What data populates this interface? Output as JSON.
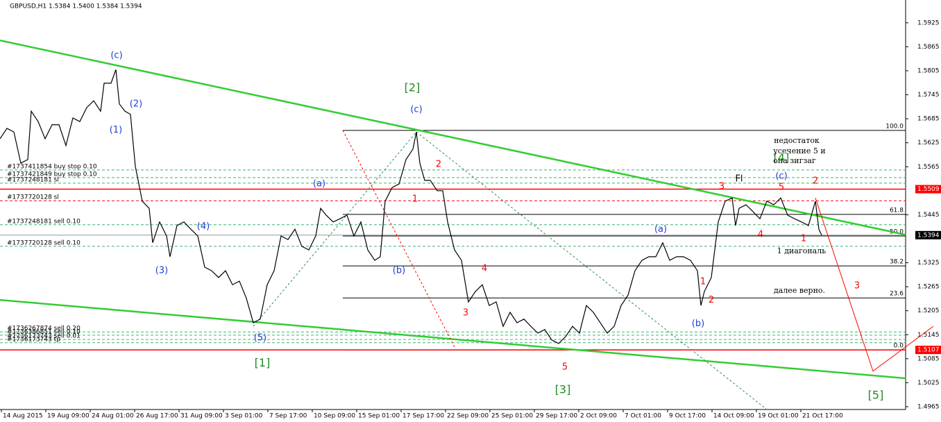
{
  "chart_data": {
    "type": "line",
    "title": "GBPUSD,H1  1.5384 1.5400 1.5384 1.5394",
    "xlim": [
      0,
      1305
    ],
    "ylim": [
      1.4958,
      1.5982
    ],
    "xticks": [
      {
        "value": 0,
        "label": "14 Aug 2015"
      },
      {
        "value": 64,
        "label": "19 Aug 09:00"
      },
      {
        "value": 128,
        "label": "24 Aug 01:00"
      },
      {
        "value": 192,
        "label": "26 Aug 17:00"
      },
      {
        "value": 256,
        "label": "31 Aug 09:00"
      },
      {
        "value": 320,
        "label": "3 Sep 01:00"
      },
      {
        "value": 384,
        "label": "7 Sep 17:00"
      },
      {
        "value": 448,
        "label": "10 Sep 09:00"
      },
      {
        "value": 512,
        "label": "15 Sep 01:00"
      },
      {
        "value": 576,
        "label": "17 Sep 17:00"
      },
      {
        "value": 640,
        "label": "22 Sep 09:00"
      },
      {
        "value": 704,
        "label": "25 Sep 01:00"
      },
      {
        "value": 768,
        "label": "29 Sep 17:00"
      },
      {
        "value": 832,
        "label": "2 Oct 09:00"
      },
      {
        "value": 896,
        "label": "7 Oct 01:00"
      },
      {
        "value": 960,
        "label": "9 Oct 17:00"
      },
      {
        "value": 1024,
        "label": "14 Oct 09:00"
      },
      {
        "value": 1088,
        "label": "19 Oct 01:00"
      },
      {
        "value": 1152,
        "label": "21 Oct 17:00"
      }
    ],
    "yticks": [
      1.5925,
      1.5865,
      1.5805,
      1.5745,
      1.5685,
      1.5625,
      1.5565,
      1.5445,
      1.5325,
      1.5265,
      1.5205,
      1.5145,
      1.5085,
      1.5025,
      1.4965
    ],
    "x": [
      0,
      10,
      20,
      30,
      40,
      45,
      55,
      65,
      75,
      85,
      95,
      105,
      115,
      125,
      135,
      145,
      150,
      160,
      167,
      172,
      180,
      188,
      195,
      205,
      215,
      220,
      230,
      240,
      245,
      255,
      265,
      275,
      285,
      295,
      305,
      315,
      325,
      335,
      345,
      355,
      365,
      375,
      385,
      395,
      405,
      415,
      425,
      435,
      445,
      455,
      462,
      470,
      480,
      490,
      500,
      510,
      520,
      530,
      540,
      548,
      555,
      565,
      575,
      585,
      595,
      600,
      605,
      612,
      620,
      630,
      638,
      645,
      655,
      665,
      675,
      685,
      695,
      705,
      715,
      725,
      735,
      745,
      755,
      765,
      775,
      785,
      795,
      805,
      815,
      825,
      835,
      845,
      855,
      865,
      875,
      885,
      895,
      905,
      915,
      925,
      935,
      945,
      955,
      965,
      975,
      985,
      995,
      1005,
      1010,
      1015,
      1025,
      1035,
      1045,
      1055,
      1060,
      1065,
      1075,
      1085,
      1095,
      1105,
      1115,
      1125,
      1135,
      1145,
      1155,
      1165,
      1175,
      1180,
      1184
    ],
    "series": [
      {
        "color": "#000000",
        "values": [
          1.5635,
          1.5661,
          1.5652,
          1.5574,
          1.5583,
          1.5704,
          1.5678,
          1.5635,
          1.567,
          1.567,
          1.5618,
          1.5687,
          1.5678,
          1.5713,
          1.573,
          1.5704,
          1.5774,
          1.5774,
          1.5808,
          1.5722,
          1.5704,
          1.5696,
          1.5566,
          1.5479,
          1.5461,
          1.5375,
          1.5427,
          1.5392,
          1.534,
          1.5418,
          1.5427,
          1.5409,
          1.5392,
          1.5314,
          1.5305,
          1.5288,
          1.5305,
          1.527,
          1.5279,
          1.5236,
          1.5175,
          1.5184,
          1.527,
          1.5305,
          1.5392,
          1.5383,
          1.5409,
          1.5366,
          1.5357,
          1.5392,
          1.5461,
          1.5444,
          1.5427,
          1.5435,
          1.5444,
          1.5392,
          1.5427,
          1.5357,
          1.5331,
          1.534,
          1.5479,
          1.5513,
          1.5522,
          1.5583,
          1.5609,
          1.5652,
          1.5574,
          1.5531,
          1.5531,
          1.5505,
          1.5505,
          1.5427,
          1.5357,
          1.5331,
          1.5227,
          1.5253,
          1.527,
          1.5218,
          1.5227,
          1.5166,
          1.5201,
          1.5175,
          1.5184,
          1.5166,
          1.5149,
          1.5158,
          1.5132,
          1.5123,
          1.514,
          1.5166,
          1.5149,
          1.5218,
          1.5201,
          1.5175,
          1.5149,
          1.5166,
          1.5218,
          1.5244,
          1.5305,
          1.5331,
          1.534,
          1.534,
          1.5375,
          1.5331,
          1.534,
          1.534,
          1.5331,
          1.5305,
          1.5218,
          1.5253,
          1.5288,
          1.5427,
          1.5479,
          1.5487,
          1.5418,
          1.5461,
          1.547,
          1.5453,
          1.5435,
          1.5479,
          1.547,
          1.5487,
          1.5444,
          1.5435,
          1.5427,
          1.5418,
          1.5479,
          1.5409,
          1.5394
        ]
      }
    ],
    "price_marks": [
      {
        "value": 1.5509,
        "color": "#ff0000"
      },
      {
        "value": 1.5107,
        "color": "#ff0000"
      },
      {
        "value": 1.5394,
        "color": "#000000"
      }
    ],
    "orders": [
      {
        "label": "#1737411854 buy stop 0.10",
        "value": 1.5557,
        "color": "#3cb371"
      },
      {
        "label": "#1737421849 buy stop 0.10",
        "value": 1.5538,
        "color": "#3cb371"
      },
      {
        "label": "#1737248181 sl",
        "value": 1.5524,
        "color": "#3cb371"
      },
      {
        "label": "#1737720128 sl",
        "value": 1.548,
        "color": "#ff0000"
      },
      {
        "label": "#1737248181 sell 0.10",
        "value": 1.542,
        "color": "#3cb371"
      },
      {
        "label": "#1737720128 sell 0.10",
        "value": 1.5366,
        "color": "#3cb371"
      },
      {
        "label": "#1736267874 sell 0.20",
        "value": 1.5152,
        "color": "#3cb371"
      },
      {
        "label": "#1736386851 sell 0.10",
        "value": 1.5144,
        "color": "#3cb371"
      },
      {
        "label": "#1736173743 sell 0.01",
        "value": 1.5133,
        "color": "#3cb371"
      },
      {
        "label": "#1736173743 tp",
        "value": 1.5125,
        "color": "#3cb371"
      }
    ],
    "fibo": {
      "x": [
        494,
        1305
      ],
      "levels": [
        {
          "value": 1.5656,
          "label": "100.0"
        },
        {
          "value": 1.5446,
          "label": "61.8"
        },
        {
          "value": 1.5392,
          "label": "50.0"
        },
        {
          "value": 1.5317,
          "label": "38.2"
        },
        {
          "value": 1.5237,
          "label": "23.6"
        },
        {
          "value": 1.5107,
          "label": "0.0"
        }
      ]
    },
    "lines": [
      {
        "x": [
          0,
          1305
        ],
        "y": [
          1.5881,
          1.5395
        ],
        "color": "#32cd32",
        "style": "thick"
      },
      {
        "x": [
          0,
          1305
        ],
        "y": [
          1.5232,
          1.5036
        ],
        "color": "#32cd32",
        "style": "thick"
      },
      {
        "x": [
          365,
          600
        ],
        "y": [
          1.5166,
          1.5652
        ],
        "color": "#2e8b57",
        "style": "dashed"
      },
      {
        "x": [
          600,
          1105
        ],
        "y": [
          1.5652,
          1.4958
        ],
        "color": "#2e8b57",
        "style": "dashed"
      },
      {
        "x": [
          494,
          655
        ],
        "y": [
          1.5656,
          1.5114
        ],
        "color": "#ff0000",
        "style": "dashed"
      },
      {
        "x": [
          1175,
          1258,
          1345
        ],
        "y": [
          1.5487,
          1.5054,
          1.5166
        ],
        "color": "#ff0000",
        "style": "solid"
      }
    ],
    "labels": [
      {
        "text": "(c)",
        "x": 168,
        "y": 1.5843,
        "color": "#1e3fd0"
      },
      {
        "text": "(2)",
        "x": 196,
        "y": 1.5722,
        "color": "#1e3fd0"
      },
      {
        "text": "(1)",
        "x": 167,
        "y": 1.5657,
        "color": "#1e3fd0"
      },
      {
        "text": "(4)",
        "x": 293,
        "y": 1.5415,
        "color": "#1e3fd0"
      },
      {
        "text": "(3)",
        "x": 233,
        "y": 1.5305,
        "color": "#1e3fd0"
      },
      {
        "text": "(5)",
        "x": 375,
        "y": 1.5137,
        "color": "#1e3fd0"
      },
      {
        "text": "[1]",
        "x": 378,
        "y": 1.5073,
        "color": "#228b22"
      },
      {
        "text": "[2]",
        "x": 594,
        "y": 1.5762,
        "color": "#228b22"
      },
      {
        "text": "(c)",
        "x": 600,
        "y": 1.5708,
        "color": "#1e3fd0"
      },
      {
        "text": "2",
        "x": 632,
        "y": 1.5571,
        "color": "#ff0000"
      },
      {
        "text": "1",
        "x": 598,
        "y": 1.5484,
        "color": "#ff0000"
      },
      {
        "text": "(a)",
        "x": 460,
        "y": 1.5522,
        "color": "#1e3fd0"
      },
      {
        "text": "(b)",
        "x": 575,
        "y": 1.5305,
        "color": "#1e3fd0"
      },
      {
        "text": "4",
        "x": 698,
        "y": 1.531,
        "color": "#ff0000"
      },
      {
        "text": "3",
        "x": 671,
        "y": 1.5199,
        "color": "#ff0000"
      },
      {
        "text": "5",
        "x": 814,
        "y": 1.5064,
        "color": "#ff0000"
      },
      {
        "text": "[3]",
        "x": 811,
        "y": 1.5007,
        "color": "#228b22"
      },
      {
        "text": "(a)",
        "x": 952,
        "y": 1.5408,
        "color": "#1e3fd0"
      },
      {
        "text": "1",
        "x": 1013,
        "y": 1.5277,
        "color": "#ff0000"
      },
      {
        "text": "2",
        "x": 1025,
        "y": 1.5231,
        "color": "#ff0000"
      },
      {
        "text": "(b)",
        "x": 1006,
        "y": 1.5172,
        "color": "#1e3fd0"
      },
      {
        "text": "3",
        "x": 1040,
        "y": 1.5515,
        "color": "#ff0000"
      },
      {
        "text": "Fl",
        "x": 1065,
        "y": 1.5534,
        "color": "#000000"
      },
      {
        "text": "(c)",
        "x": 1126,
        "y": 1.5541,
        "color": "#1e3fd0"
      },
      {
        "text": "5",
        "x": 1126,
        "y": 1.5513,
        "color": "#ff0000"
      },
      {
        "text": "4",
        "x": 1096,
        "y": 1.5395,
        "color": "#ff0000"
      },
      {
        "text": "1",
        "x": 1158,
        "y": 1.5385,
        "color": "#ff0000"
      },
      {
        "text": "2",
        "x": 1175,
        "y": 1.5529,
        "color": "#ff0000"
      },
      {
        "text": "3",
        "x": 1235,
        "y": 1.5267,
        "color": "#ff0000"
      },
      {
        "text": "[4]",
        "x": 1126,
        "y": 1.5586,
        "color": "#228b22"
      },
      {
        "text": "[5]",
        "x": 1262,
        "y": 1.4993,
        "color": "#228b22"
      }
    ],
    "notes": [
      {
        "text": "недостаток",
        "x": 1148,
        "y": 1.563
      },
      {
        "text": "усечение 5 и",
        "x": 1152,
        "y": 1.5604
      },
      {
        "text": "она зигзаг",
        "x": 1145,
        "y": 1.5579
      },
      {
        "text": "1 диагональ",
        "x": 1155,
        "y": 1.5354
      },
      {
        "text": "далее верно.",
        "x": 1152,
        "y": 1.5255
      }
    ]
  }
}
